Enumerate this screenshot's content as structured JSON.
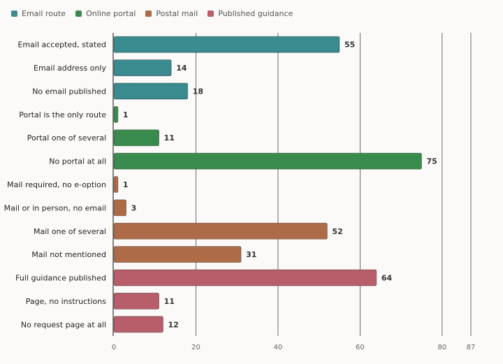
{
  "chart_data": {
    "type": "bar",
    "orientation": "horizontal",
    "title": "",
    "xlabel": "",
    "ylabel": "",
    "xlim": [
      0,
      87
    ],
    "ticks": [
      0,
      20,
      40,
      60,
      80,
      87
    ],
    "grid": true,
    "legend_position": "top-left",
    "series": [
      {
        "name": "Email route",
        "color": "#3a8b8f"
      },
      {
        "name": "Online portal",
        "color": "#3a8c4e"
      },
      {
        "name": "Postal mail",
        "color": "#ad6b47"
      },
      {
        "name": "Published guidance",
        "color": "#b85e6b"
      }
    ],
    "bars": [
      {
        "label": "Email accepted, stated",
        "value": 55,
        "series": 0
      },
      {
        "label": "Email address only",
        "value": 14,
        "series": 0
      },
      {
        "label": "No email published",
        "value": 18,
        "series": 0
      },
      {
        "label": "Portal is the only route",
        "value": 1,
        "series": 1
      },
      {
        "label": "Portal one of several",
        "value": 11,
        "series": 1
      },
      {
        "label": "No portal at all",
        "value": 75,
        "series": 1
      },
      {
        "label": "Mail required, no e-option",
        "value": 1,
        "series": 2
      },
      {
        "label": "Mail or in person, no email",
        "value": 3,
        "series": 2
      },
      {
        "label": "Mail one of several",
        "value": 52,
        "series": 2
      },
      {
        "label": "Mail not mentioned",
        "value": 31,
        "series": 2
      },
      {
        "label": "Full guidance published",
        "value": 64,
        "series": 3
      },
      {
        "label": "Page, no instructions",
        "value": 11,
        "series": 3
      },
      {
        "label": "No request page at all",
        "value": 12,
        "series": 3
      }
    ]
  }
}
